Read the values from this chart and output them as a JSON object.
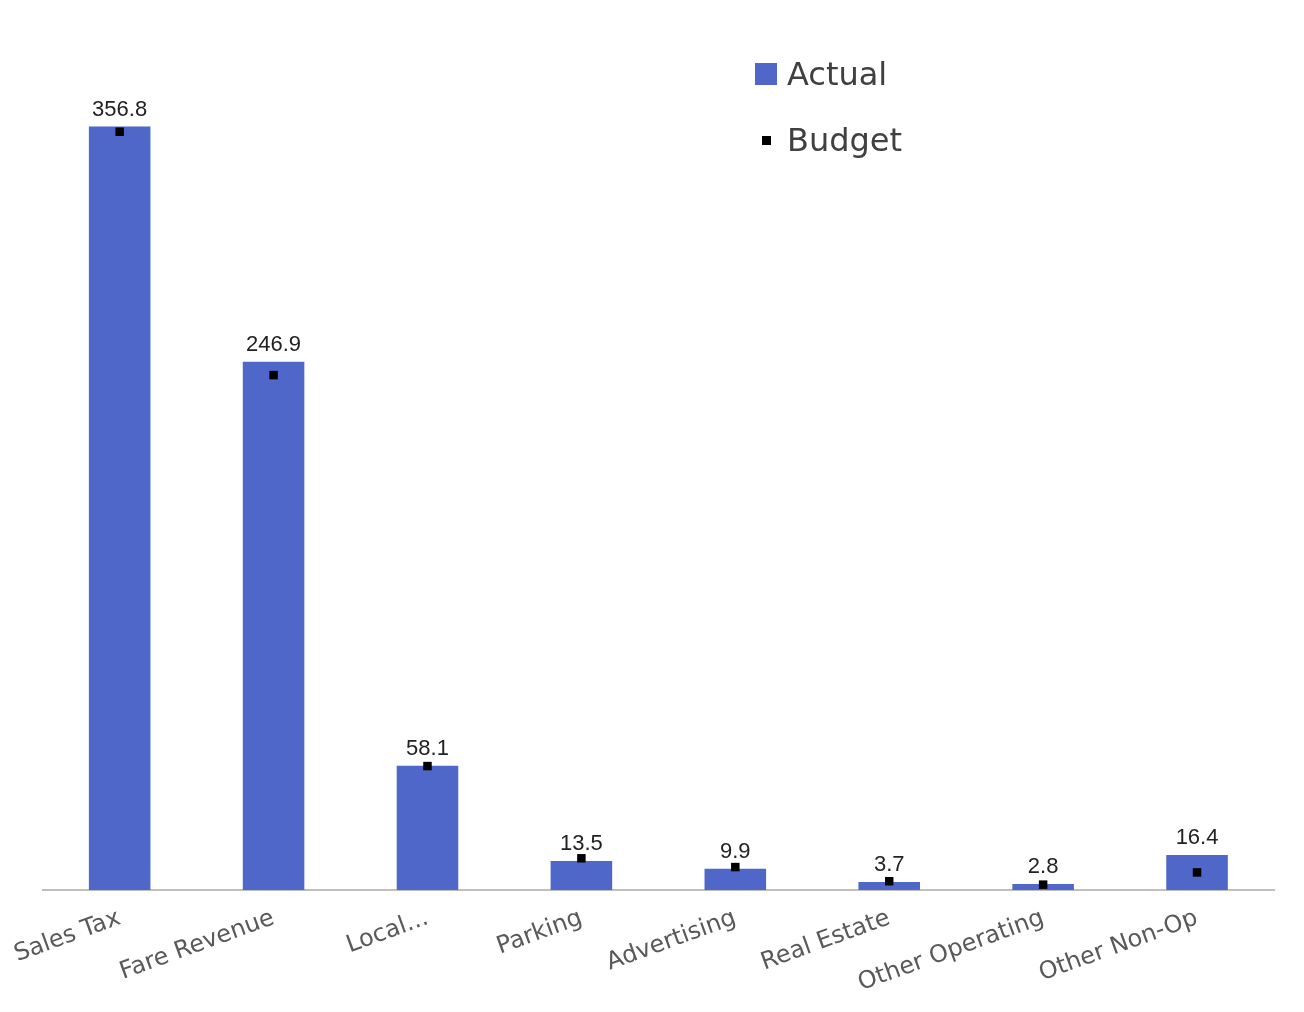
{
  "chart_data": {
    "type": "bar",
    "categories": [
      "Sales Tax",
      "Fare Revenue",
      "Local...",
      "Parking",
      "Advertising",
      "Real Estate",
      "Other Operating",
      "Other Non-Op"
    ],
    "series": [
      {
        "name": "Actual",
        "type": "bar",
        "color": "#4f67c9",
        "values": [
          356.8,
          246.9,
          58.1,
          13.5,
          9.9,
          3.7,
          2.8,
          16.4
        ],
        "value_labels": [
          "356.8",
          "246.9",
          "58.1",
          "13.5",
          "9.9",
          "3.7",
          "2.8",
          "16.4"
        ]
      },
      {
        "name": "Budget",
        "type": "scatter",
        "marker": "square",
        "color": "#000000",
        "values": [
          354.3,
          240.6,
          57.9,
          14.8,
          10.7,
          4.1,
          2.5,
          8.2
        ]
      }
    ],
    "legend": "top right",
    "grid": false
  }
}
